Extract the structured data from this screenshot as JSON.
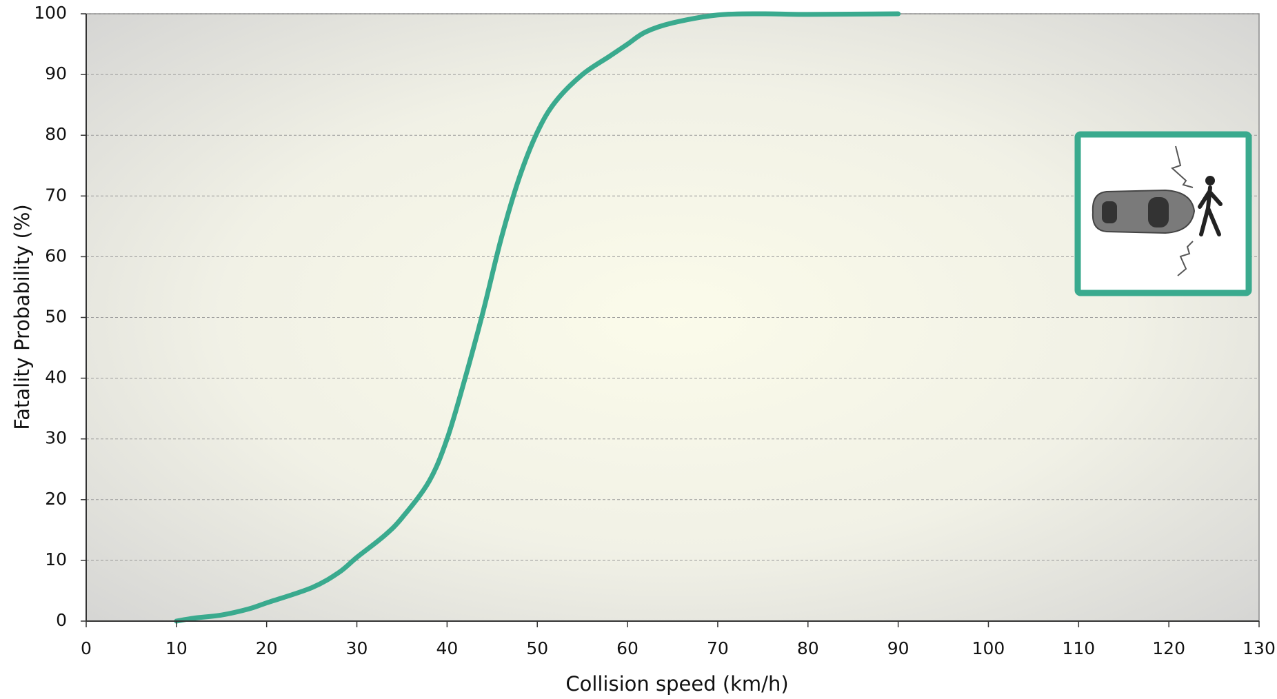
{
  "chart_data": {
    "type": "line",
    "x_label": "Collision speed (km/h)",
    "y_label": "Fatality Probability (%)",
    "x": [
      10,
      12,
      15,
      18,
      20,
      25,
      28,
      30,
      33,
      35,
      38,
      40,
      42,
      44,
      46,
      48,
      50,
      52,
      55,
      58,
      60,
      62,
      65,
      70,
      75,
      80,
      90
    ],
    "series": [
      {
        "color": "#3aaa8e",
        "values": [
          0,
          0.5,
          1,
          2,
          3,
          5.5,
          8,
          10.5,
          14,
          17,
          23,
          30,
          40,
          51,
          63,
          73,
          80.5,
          85.5,
          90,
          93,
          95,
          97,
          98.5,
          99.8,
          100,
          99.9,
          100
        ]
      }
    ],
    "xlim": [
      0,
      130
    ],
    "xticks": [
      0,
      10,
      20,
      30,
      40,
      50,
      60,
      70,
      80,
      90,
      100,
      110,
      120,
      130
    ],
    "ylim": [
      0,
      100
    ],
    "yticks": [
      0,
      10,
      20,
      30,
      40,
      50,
      60,
      70,
      80,
      90,
      100
    ],
    "grid": true
  }
}
